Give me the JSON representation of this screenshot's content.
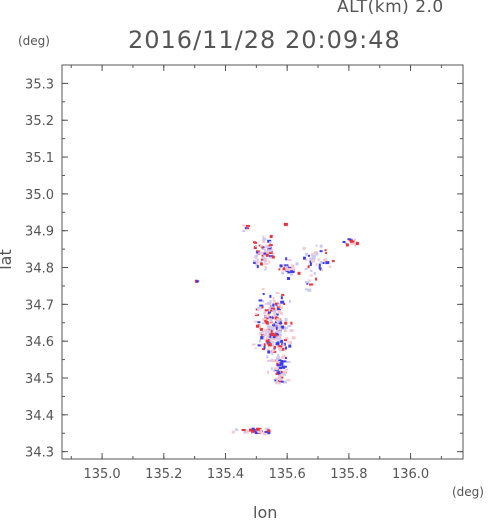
{
  "header": {
    "altitude": "ALT(km) 2.0",
    "timestamp": "2016/11/28 20:09:48"
  },
  "chart_data": {
    "type": "heatmap",
    "title": "2016/11/28 20:09:48",
    "xlabel": "lon",
    "ylabel": "lat",
    "x_unit": "(deg)",
    "y_unit": "(deg)",
    "xlim": [
      134.87,
      136.17
    ],
    "ylim": [
      34.28,
      35.35
    ],
    "x_ticks": [
      135.0,
      135.2,
      135.4,
      135.6,
      135.8,
      136.0
    ],
    "x_tick_labels": [
      "135.0",
      "135.2",
      "135.4",
      "135.6",
      "135.8",
      "136.0"
    ],
    "y_ticks": [
      34.3,
      34.4,
      34.5,
      34.6,
      34.7,
      34.8,
      34.9,
      35.0,
      35.1,
      35.2,
      35.3
    ],
    "y_tick_labels": [
      "34.3",
      "34.4",
      "34.5",
      "34.6",
      "34.7",
      "34.8",
      "34.9",
      "35.0",
      "35.1",
      "35.2",
      "35.3"
    ],
    "grid": false,
    "colors": {
      "positive": "#e8343c",
      "negative": "#3c3ce8",
      "pale_positive": "#f6c9cf",
      "pale_negative": "#c9c9f6"
    },
    "echo_clusters": [
      {
        "lon": 135.555,
        "lat": 34.63,
        "lon_spread": 0.045,
        "lat_spread": 0.08,
        "count": 260
      },
      {
        "lon": 135.57,
        "lat": 34.52,
        "lon_spread": 0.02,
        "lat_spread": 0.035,
        "count": 60
      },
      {
        "lon": 135.52,
        "lat": 34.84,
        "lon_spread": 0.03,
        "lat_spread": 0.04,
        "count": 70
      },
      {
        "lon": 135.6,
        "lat": 34.8,
        "lon_spread": 0.025,
        "lat_spread": 0.02,
        "count": 35
      },
      {
        "lon": 135.69,
        "lat": 34.83,
        "lon_spread": 0.04,
        "lat_spread": 0.03,
        "count": 40
      },
      {
        "lon": 135.8,
        "lat": 34.875,
        "lon_spread": 0.02,
        "lat_spread": 0.01,
        "count": 14
      },
      {
        "lon": 135.49,
        "lat": 34.36,
        "lon_spread": 0.05,
        "lat_spread": 0.007,
        "count": 45
      },
      {
        "lon": 135.465,
        "lat": 34.905,
        "lon_spread": 0.01,
        "lat_spread": 0.015,
        "count": 6
      },
      {
        "lon": 135.67,
        "lat": 34.76,
        "lon_spread": 0.015,
        "lat_spread": 0.02,
        "count": 10
      },
      {
        "lon": 135.3,
        "lat": 34.765,
        "lon_spread": 0.004,
        "lat_spread": 0.004,
        "count": 3
      },
      {
        "lon": 135.59,
        "lat": 34.92,
        "lon_spread": 0.003,
        "lat_spread": 0.003,
        "count": 2
      }
    ]
  }
}
